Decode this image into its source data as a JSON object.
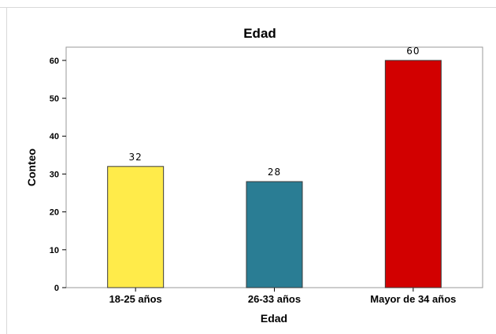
{
  "chart_data": {
    "type": "bar",
    "title": "Edad",
    "xlabel": "Edad",
    "ylabel": "Conteo",
    "categories": [
      "18-25 años",
      "26-33 años",
      "Mayor de 34 años"
    ],
    "values": [
      32,
      28,
      60
    ],
    "data_labels": [
      "32",
      "28",
      "60"
    ],
    "colors": [
      "#ffeb4a",
      "#2a7d94",
      "#d20000"
    ],
    "ylim": [
      0,
      63.5
    ],
    "yticks": [
      0,
      10,
      20,
      30,
      40,
      50,
      60
    ],
    "grid": false,
    "legend": "none"
  }
}
